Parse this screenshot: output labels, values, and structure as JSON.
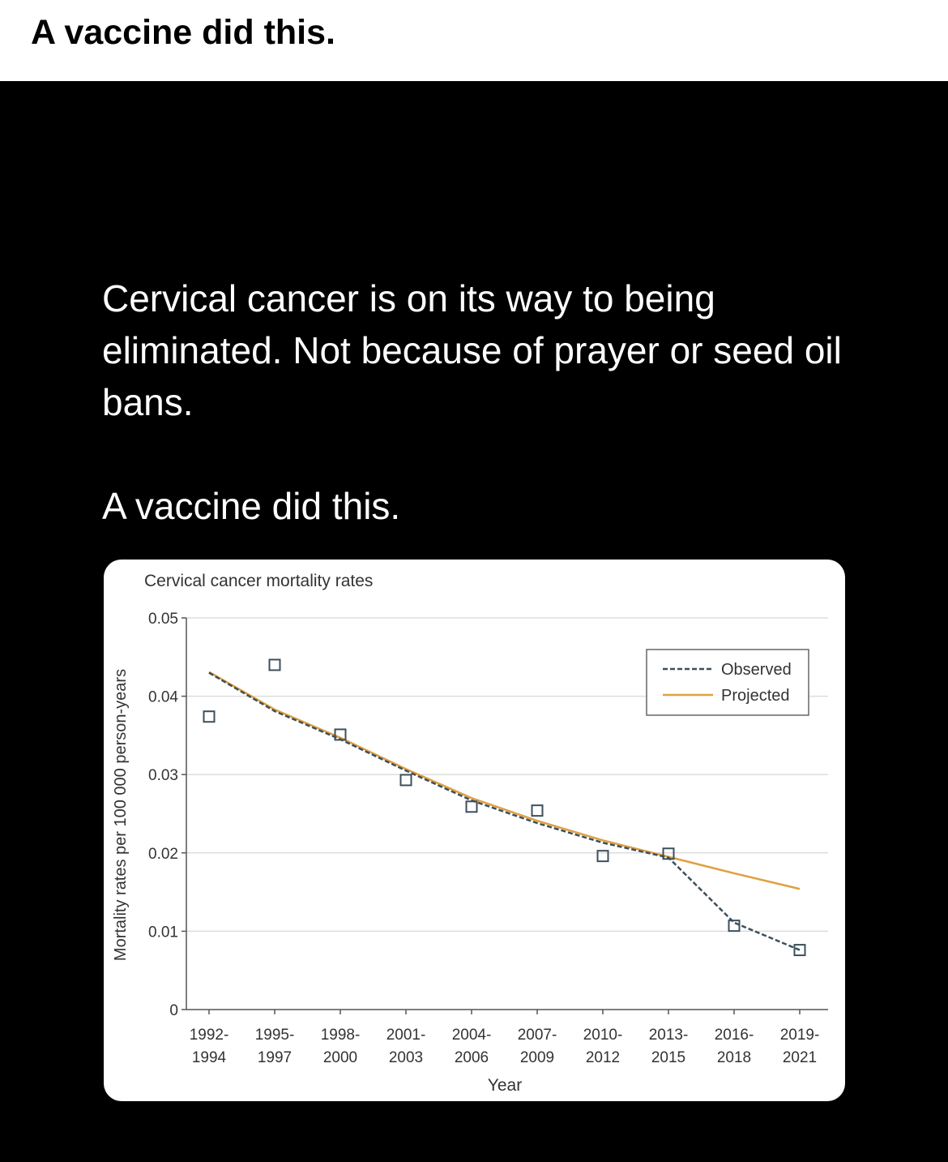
{
  "header": {
    "title": "A vaccine did this."
  },
  "post": {
    "body": "Cervical cancer is on its way to being eliminated. Not because of prayer or seed oil bans.",
    "tagline": "A vaccine did this."
  },
  "chart_data": {
    "type": "line",
    "title": "Cervical cancer mortality rates",
    "xlabel": "Year",
    "ylabel": "Mortality rates per 100 000 person-years",
    "ylim": [
      0,
      0.05
    ],
    "yticks": [
      "0",
      "0.01",
      "0.02",
      "0.03",
      "0.04",
      "0.05"
    ],
    "categories": [
      [
        "1992-",
        "1994"
      ],
      [
        "1995-",
        "1997"
      ],
      [
        "1998-",
        "2000"
      ],
      [
        "2001-",
        "2003"
      ],
      [
        "2004-",
        "2006"
      ],
      [
        "2007-",
        "2009"
      ],
      [
        "2010-",
        "2012"
      ],
      [
        "2013-",
        "2015"
      ],
      [
        "2016-",
        "2018"
      ],
      [
        "2019-",
        "2021"
      ]
    ],
    "grid": true,
    "legend": {
      "placement": "top-right",
      "entries": [
        "Observed",
        "Projected"
      ]
    },
    "points": [
      0.0374,
      0.044,
      0.0351,
      0.0293,
      0.0259,
      0.0254,
      0.0196,
      0.0199,
      0.0107,
      0.0076
    ],
    "series": [
      {
        "name": "Observed",
        "style": "dashed",
        "color": "#3d4f5c",
        "values": [
          0.043,
          0.0381,
          0.0345,
          0.0305,
          0.0267,
          0.0238,
          0.0213,
          0.0194,
          0.0111,
          0.0076
        ]
      },
      {
        "name": "Projected",
        "style": "solid",
        "color": "#e0a040",
        "values": [
          0.0431,
          0.0383,
          0.0347,
          0.0307,
          0.027,
          0.0241,
          0.0216,
          0.0195,
          0.0174,
          0.0154
        ]
      }
    ]
  }
}
